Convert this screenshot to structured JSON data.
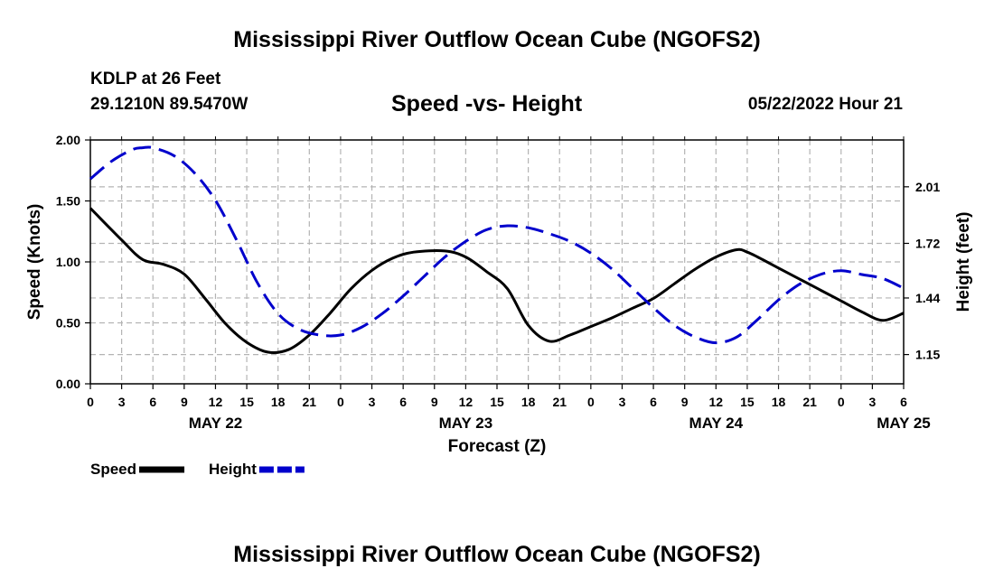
{
  "page": {
    "title": "Mississippi River Outflow Ocean Cube (NGOFS2)",
    "footer_title": "Mississippi River Outflow Ocean Cube (NGOFS2)",
    "station": "KDLP at 26 Feet",
    "coords": "29.1210N  89.5470W",
    "timestamp": "05/22/2022 Hour 21"
  },
  "chart_data": {
    "type": "line",
    "title": "Speed -vs- Height",
    "xlabel": "Forecast (Z)",
    "ylabel": "Speed (Knots)",
    "y2label": "Height (feet)",
    "x_ticks": [
      "0",
      "3",
      "6",
      "9",
      "12",
      "15",
      "18",
      "21",
      "0",
      "3",
      "6",
      "9",
      "12",
      "15",
      "18",
      "21",
      "0",
      "3",
      "6",
      "9",
      "12",
      "15",
      "18",
      "21",
      "0",
      "3",
      "6"
    ],
    "date_labels": [
      {
        "label": "MAY 22",
        "hour": 12
      },
      {
        "label": "MAY 23",
        "hour": 36
      },
      {
        "label": "MAY 24",
        "hour": 60
      },
      {
        "label": "MAY 25",
        "hour": 78
      }
    ],
    "xlim": [
      0,
      78
    ],
    "ylim": [
      0,
      2.0
    ],
    "y_ticks": [
      "0.00",
      "0.50",
      "1.00",
      "1.50",
      "2.00"
    ],
    "y2lim": [
      1.0,
      2.25
    ],
    "y2_ticks": [
      "1.15",
      "1.44",
      "1.72",
      "2.01"
    ],
    "series": [
      {
        "name": "Speed",
        "axis": "left",
        "color": "#000000",
        "style": "solid",
        "x": [
          0,
          3,
          5,
          7,
          9,
          11,
          13,
          15,
          17,
          19,
          21,
          23,
          25,
          27,
          29,
          31,
          34,
          36,
          38,
          40,
          42,
          44,
          46,
          48,
          50,
          52,
          54,
          56,
          58,
          60,
          62,
          63,
          64,
          66,
          68,
          70,
          72,
          74,
          76,
          78
        ],
        "y": [
          1.44,
          1.18,
          1.02,
          0.98,
          0.9,
          0.7,
          0.49,
          0.34,
          0.26,
          0.28,
          0.4,
          0.58,
          0.78,
          0.93,
          1.03,
          1.08,
          1.09,
          1.04,
          0.92,
          0.78,
          0.48,
          0.35,
          0.4,
          0.47,
          0.54,
          0.62,
          0.7,
          0.82,
          0.94,
          1.04,
          1.1,
          1.08,
          1.04,
          0.95,
          0.86,
          0.77,
          0.68,
          0.59,
          0.52,
          0.58
        ]
      },
      {
        "name": "Height",
        "axis": "right",
        "color": "#0000cc",
        "style": "dashed",
        "x": [
          0,
          2,
          4,
          5,
          6,
          8,
          10,
          12,
          14,
          16,
          18,
          20,
          22,
          24,
          26,
          28,
          30,
          32,
          34,
          36,
          38,
          40,
          42,
          44,
          46,
          48,
          50,
          52,
          54,
          56,
          58,
          60,
          62,
          64,
          66,
          68,
          70,
          72,
          74,
          76,
          78
        ],
        "y": [
          2.05,
          2.14,
          2.2,
          2.21,
          2.21,
          2.17,
          2.08,
          1.94,
          1.74,
          1.52,
          1.36,
          1.28,
          1.25,
          1.25,
          1.29,
          1.36,
          1.45,
          1.55,
          1.65,
          1.73,
          1.79,
          1.81,
          1.8,
          1.77,
          1.73,
          1.67,
          1.59,
          1.49,
          1.39,
          1.3,
          1.24,
          1.21,
          1.24,
          1.33,
          1.43,
          1.51,
          1.56,
          1.58,
          1.56,
          1.54,
          1.49
        ]
      }
    ],
    "legend": [
      {
        "label": "Speed",
        "color": "#000000",
        "style": "solid"
      },
      {
        "label": "Height",
        "color": "#0000cc",
        "style": "dashed"
      }
    ],
    "legend_position": "bottom-left",
    "grid": true
  }
}
